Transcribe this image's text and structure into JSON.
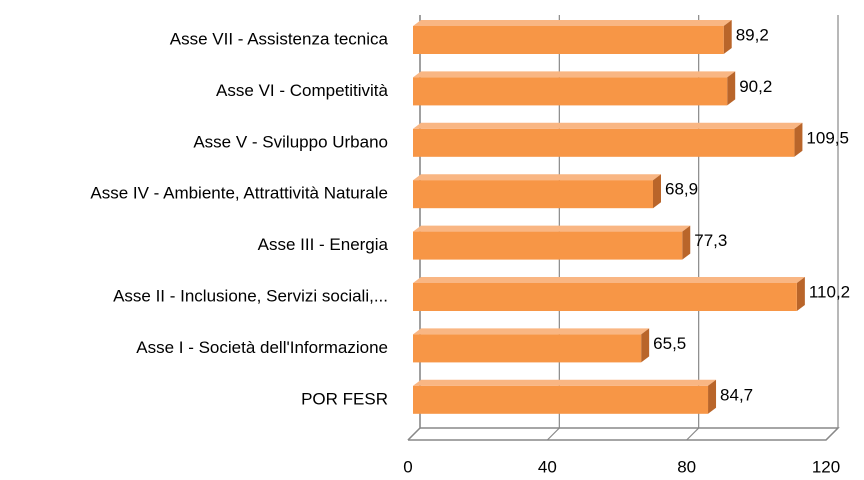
{
  "chart_data": {
    "type": "bar",
    "orientation": "horizontal",
    "categories": [
      "Asse VII - Assistenza tecnica",
      "Asse VI - Competitività",
      "Asse V - Sviluppo Urbano",
      "Asse IV - Ambiente, Attrattività Naturale",
      "Asse III - Energia",
      "Asse II - Inclusione, Servizi sociali,...",
      "Asse I - Società dell'Informazione",
      "POR FESR"
    ],
    "values": [
      89.2,
      90.2,
      109.5,
      68.9,
      77.3,
      110.2,
      65.5,
      84.7
    ],
    "value_labels": [
      "89,2",
      "90,2",
      "109,5",
      "68,9",
      "77,3",
      "110,2",
      "65,5",
      "84,7"
    ],
    "color": "#f79646",
    "xlim": [
      0,
      120
    ],
    "xticks": [
      0,
      40,
      80,
      120
    ],
    "grid": true
  }
}
